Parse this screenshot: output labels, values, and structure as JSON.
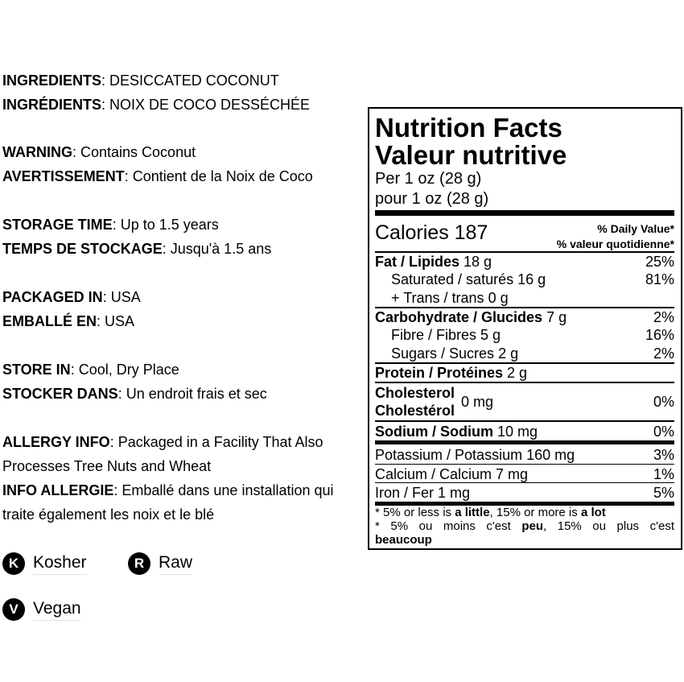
{
  "info": {
    "sections": [
      {
        "lines": [
          {
            "label": "INGREDIENTS",
            "text": ": DESICCATED COCONUT"
          },
          {
            "label": "INGRÉDIENTS",
            "text": ": NOIX DE COCO DESSÉCHÉE"
          }
        ]
      },
      {
        "lines": [
          {
            "label": "WARNING",
            "text": ": Contains Coconut"
          },
          {
            "label": "AVERTISSEMENT",
            "text": ": Contient de la Noix de Coco"
          }
        ]
      },
      {
        "lines": [
          {
            "label": "STORAGE TIME",
            "text": ": Up to 1.5 years"
          },
          {
            "label": "TEMPS DE STOCKAGE",
            "text": ": Jusqu'à 1.5 ans"
          }
        ]
      },
      {
        "lines": [
          {
            "label": "PACKAGED IN",
            "text": ": USA"
          },
          {
            "label": "EMBALLÉ EN",
            "text": ": USA"
          }
        ]
      },
      {
        "lines": [
          {
            "label": "STORE IN",
            "text": ": Cool, Dry Place"
          },
          {
            "label": "STOCKER DANS",
            "text": ": Un endroit frais et sec"
          }
        ]
      },
      {
        "lines": [
          {
            "label": "ALLERGY INFO",
            "text": ": Packaged in a Facility That Also Processes Tree Nuts and Wheat"
          },
          {
            "label": "INFO ALLERGIE",
            "text": ": Emballé dans une installation qui traite également les noix et le blé"
          }
        ]
      }
    ],
    "badges": [
      {
        "letter": "K",
        "label": "Kosher"
      },
      {
        "letter": "R",
        "label": "Raw"
      },
      {
        "letter": "V",
        "label": "Vegan"
      }
    ]
  },
  "nutrition": {
    "title": "Nutrition Facts",
    "title_fr": "Valeur nutritive",
    "serving": "Per 1 oz (28 g)",
    "serving_fr": "pour 1 oz (28 g)",
    "calories_label": "Calories",
    "calories": "187",
    "dv_header": "% Daily Value*",
    "dv_header_fr": "% valeur quotidienne*",
    "rows": [
      {
        "name": "Fat / Lipides",
        "amount": "18 g",
        "dv": "25%"
      },
      {
        "name": "Saturated / saturés",
        "amount": "16 g",
        "dv": "81%"
      },
      {
        "name": "+ Trans / trans",
        "amount": "0 g"
      },
      {
        "name": "Carbohydrate / Glucides",
        "amount": "7 g",
        "dv": "2%"
      },
      {
        "name": "Fibre / Fibres",
        "amount": "5 g",
        "dv": "16%"
      },
      {
        "name": "Sugars / Sucres",
        "amount": "2 g",
        "dv": "2%"
      },
      {
        "name": "Protein / Protéines",
        "amount": "2 g"
      },
      {
        "name": [
          "Cholesterol",
          "Cholestérol"
        ],
        "amount": "0 mg",
        "dv": "0%"
      },
      {
        "name": "Sodium / Sodium",
        "amount": "10 mg",
        "dv": "0%"
      },
      {
        "name": "Potassium / Potassium",
        "amount": "160 mg",
        "dv": "3%"
      },
      {
        "name": "Calcium / Calcium",
        "amount": "7 mg",
        "dv": "1%"
      },
      {
        "name": "Iron / Fer",
        "amount": "1 mg",
        "dv": "5%"
      }
    ],
    "footnote": [
      "* 5% or less is ",
      "a little",
      ", 15% or more is ",
      "a lot"
    ],
    "footnote_fr": [
      "* 5% ou moins c'est ",
      "peu",
      ", 15% ou plus c'est ",
      "beaucoup"
    ]
  }
}
